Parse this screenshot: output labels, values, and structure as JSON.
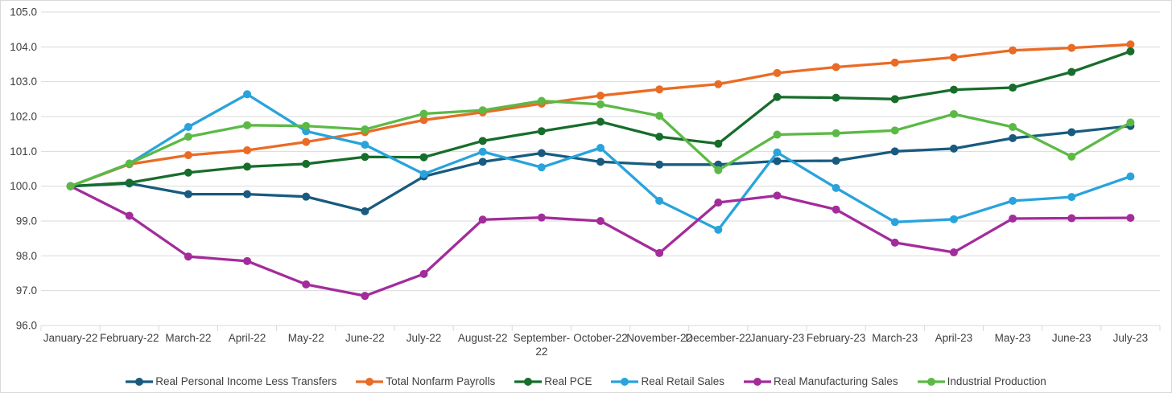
{
  "chart_data": {
    "type": "line",
    "title": "",
    "xlabel": "",
    "ylabel": "",
    "x_categories": [
      "January-22",
      "February-22",
      "March-22",
      "April-22",
      "May-22",
      "June-22",
      "July-22",
      "August-22",
      "September-22",
      "October-22",
      "November-22",
      "December-22",
      "January-23",
      "February-23",
      "March-23",
      "April-23",
      "May-23",
      "June-23",
      "July-23"
    ],
    "y_axis": {
      "min": 96.0,
      "max": 105.0,
      "step": 1.0,
      "tick_labels": [
        "96.0",
        "97.0",
        "98.0",
        "99.0",
        "100.0",
        "101.0",
        "102.0",
        "103.0",
        "104.0",
        "105.0"
      ]
    },
    "grid": "horizontal-on",
    "legend_position": "bottom",
    "series": [
      {
        "name": "Real Personal Income Less Transfers",
        "color": "#185B7F",
        "values": [
          100.0,
          100.08,
          99.77,
          99.77,
          99.7,
          99.28,
          100.28,
          100.7,
          100.95,
          100.7,
          100.62,
          100.62,
          100.72,
          100.73,
          101.0,
          101.08,
          101.38,
          101.55,
          101.73
        ]
      },
      {
        "name": "Total Nonfarm Payrolls",
        "color": "#EA6B25",
        "values": [
          100.0,
          100.63,
          100.89,
          101.03,
          101.27,
          101.55,
          101.9,
          102.12,
          102.37,
          102.6,
          102.78,
          102.93,
          103.25,
          103.42,
          103.55,
          103.7,
          103.9,
          103.97,
          104.07
        ]
      },
      {
        "name": "Real PCE",
        "color": "#176D2B",
        "values": [
          100.0,
          100.1,
          100.39,
          100.56,
          100.64,
          100.84,
          100.83,
          101.3,
          101.58,
          101.85,
          101.42,
          101.22,
          102.56,
          102.54,
          102.5,
          102.77,
          102.83,
          103.28,
          103.87
        ]
      },
      {
        "name": "Real Retail Sales",
        "color": "#29A3DC",
        "values": [
          100.0,
          100.65,
          101.7,
          102.64,
          101.58,
          101.19,
          100.35,
          100.99,
          100.54,
          101.1,
          99.58,
          98.75,
          100.97,
          99.95,
          98.97,
          99.05,
          99.58,
          99.69,
          100.28
        ]
      },
      {
        "name": "Real Manufacturing Sales",
        "color": "#A32C9B",
        "values": [
          100.0,
          99.15,
          97.98,
          97.85,
          97.18,
          96.85,
          97.48,
          99.04,
          99.1,
          99.0,
          98.08,
          99.53,
          99.73,
          99.33,
          98.38,
          98.1,
          99.07,
          99.08,
          99.09
        ]
      },
      {
        "name": "Industrial Production",
        "color": "#5CB946",
        "values": [
          100.0,
          100.65,
          101.42,
          101.75,
          101.73,
          101.63,
          102.08,
          102.18,
          102.45,
          102.35,
          102.02,
          100.46,
          101.48,
          101.52,
          101.6,
          102.07,
          101.7,
          100.85,
          101.83
        ]
      }
    ]
  },
  "colors": {
    "gridline": "#D9D9D9",
    "axis_text": "#404040",
    "border": "#D9D9D9",
    "background": "#FFFFFF"
  }
}
